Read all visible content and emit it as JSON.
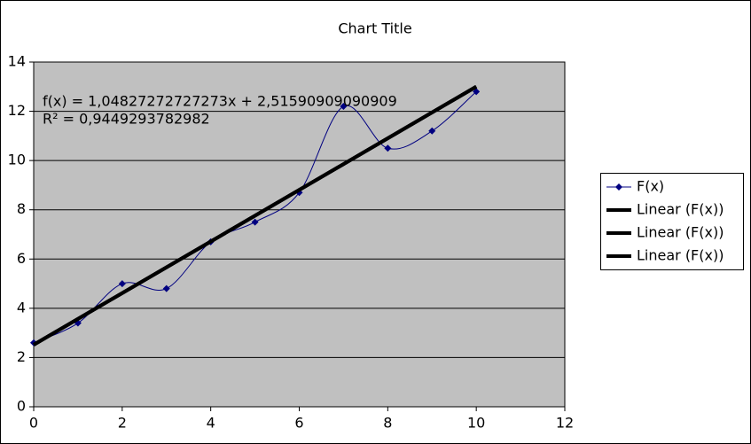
{
  "chart_data": {
    "type": "scatter",
    "title": "Chart Title",
    "x": [
      0,
      1,
      2,
      3,
      4,
      5,
      6,
      7,
      8,
      9,
      10
    ],
    "series": [
      {
        "name": "F(x)",
        "color": "#000080",
        "smooth": true,
        "marker": "diamond",
        "x": [
          0,
          1,
          2,
          3,
          4,
          5,
          6,
          7,
          8,
          9,
          10
        ],
        "values": [
          2.6,
          3.4,
          5.0,
          4.8,
          6.7,
          7.5,
          8.7,
          12.2,
          10.5,
          11.2,
          12.8
        ]
      },
      {
        "name": "Linear (F(x))",
        "color": "#000000",
        "x": [
          0,
          10
        ],
        "values": [
          2.52,
          13.0
        ]
      },
      {
        "name": "Linear (F(x))",
        "color": "#000000",
        "x": [
          0,
          10
        ],
        "values": [
          2.52,
          13.0
        ]
      },
      {
        "name": "Linear (F(x))",
        "color": "#000000",
        "x": [
          0,
          10
        ],
        "values": [
          2.52,
          13.0
        ]
      }
    ],
    "annotations": [
      "f(x) = 1,04827272727273x + 2,51590909090909",
      "R² = 0,9449293782982"
    ],
    "xlim": [
      0,
      12
    ],
    "xticks": [
      0,
      2,
      4,
      6,
      8,
      10,
      12
    ],
    "ylim": [
      0,
      14
    ],
    "yticks": [
      0,
      2,
      4,
      6,
      8,
      10,
      12,
      14
    ],
    "grid": true,
    "plot_background": "#c0c0c0",
    "legend": "right"
  }
}
